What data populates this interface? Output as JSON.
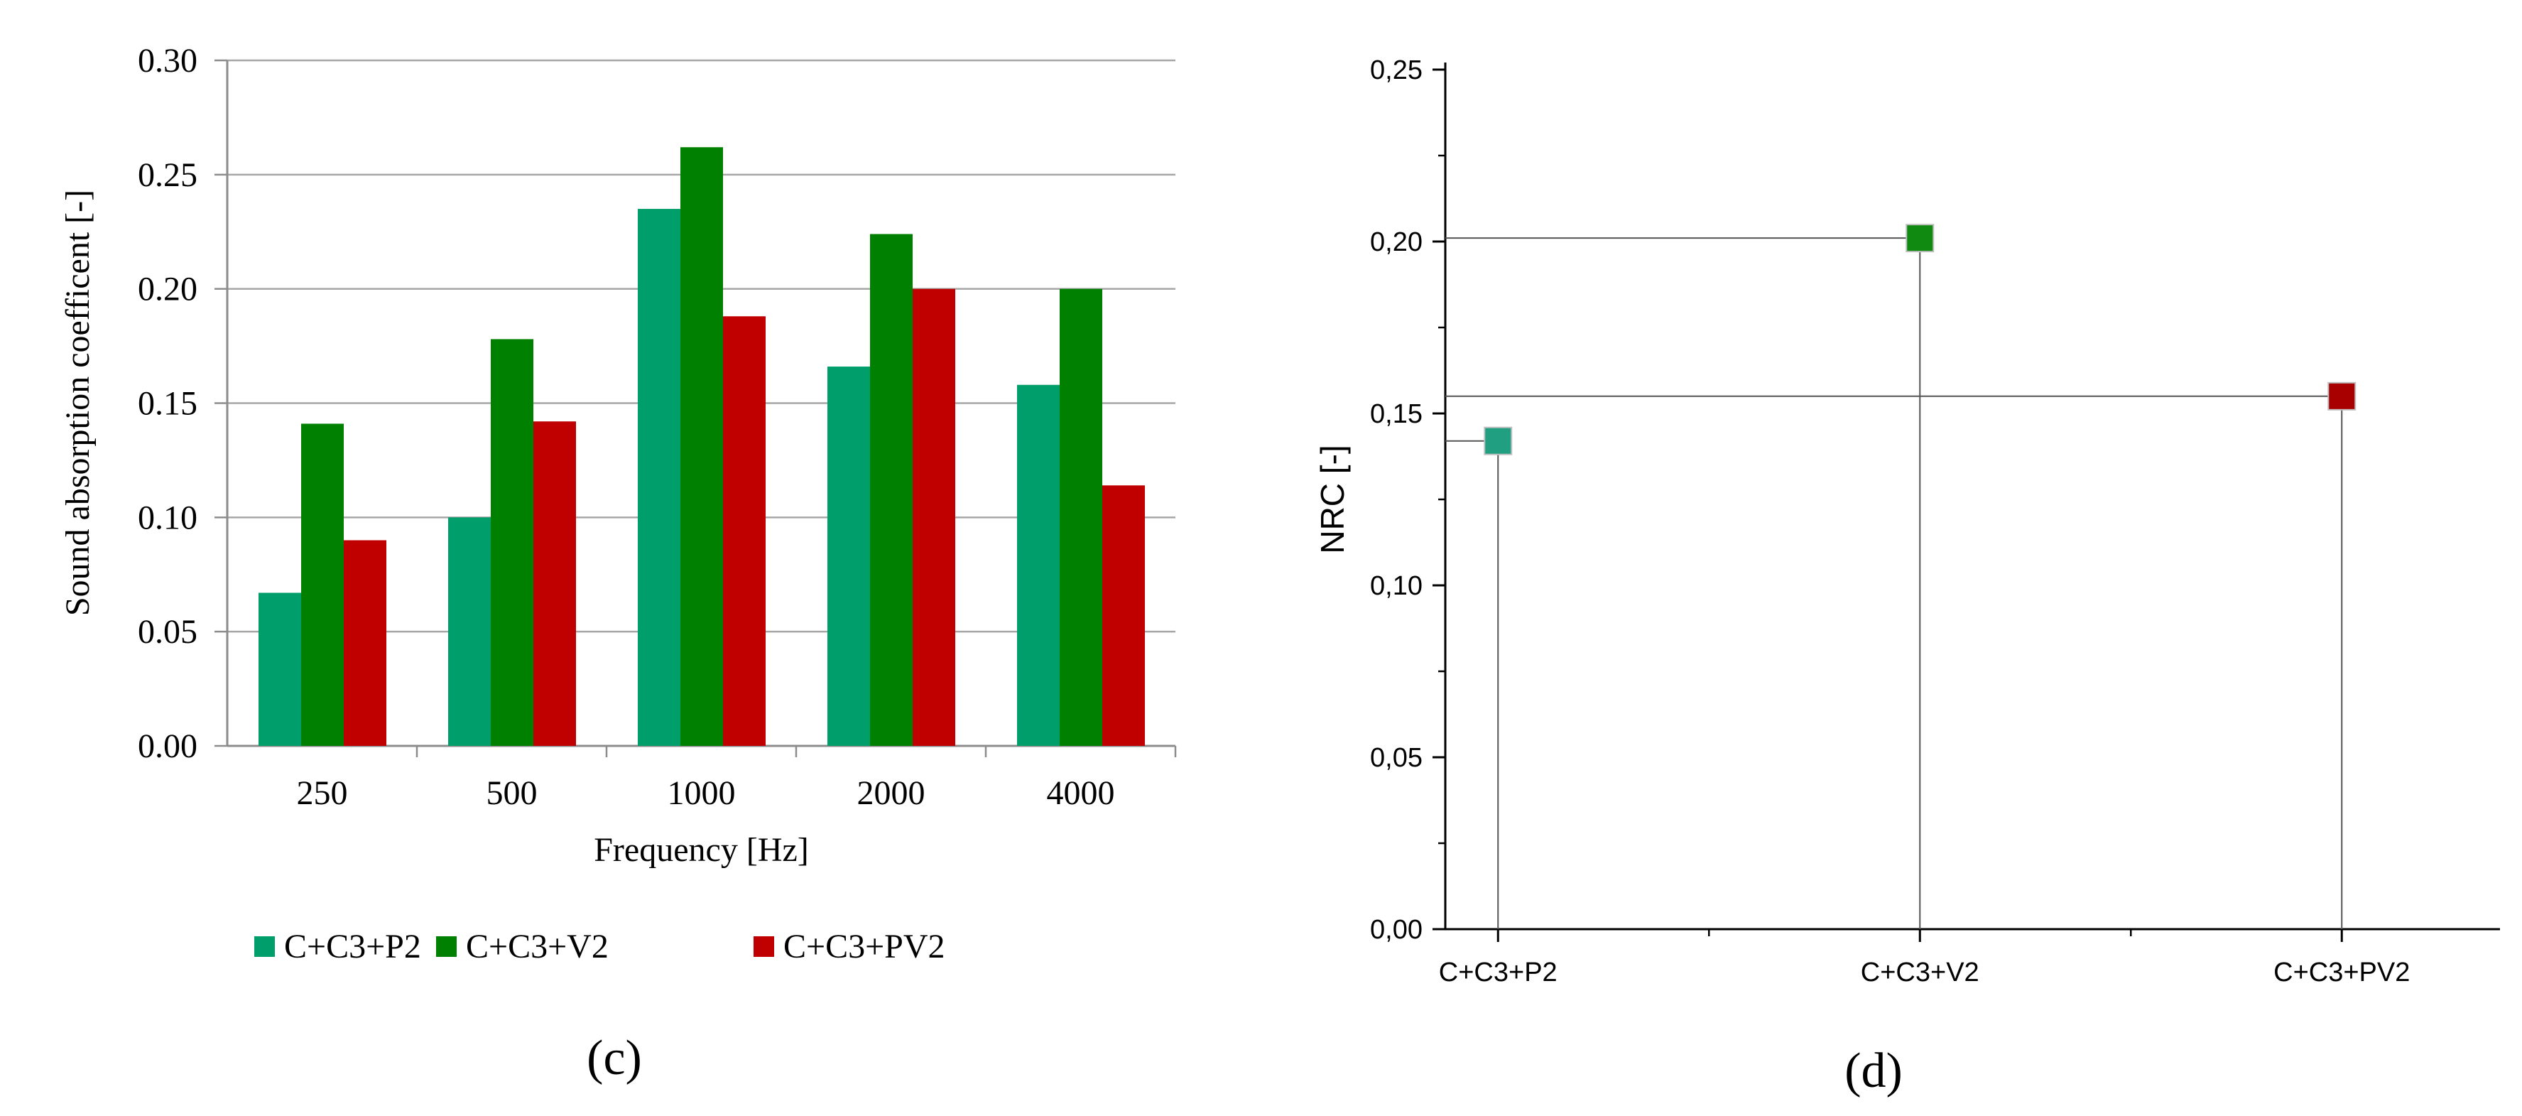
{
  "chart_data": [
    {
      "type": "bar",
      "title": "",
      "panel_label": "(c)",
      "xlabel": "Frequency [Hz]",
      "ylabel": "Sound absorption coefficent [-]",
      "categories": [
        "250",
        "500",
        "1000",
        "2000",
        "4000"
      ],
      "ylim": [
        0,
        0.3
      ],
      "yticks": [
        "0.00",
        "0.05",
        "0.10",
        "0.15",
        "0.20",
        "0.25",
        "0.30"
      ],
      "grid": true,
      "legend_position": "bottom",
      "series": [
        {
          "name": "C+C3+P2",
          "color": "#009e6b",
          "values": [
            0.067,
            0.1,
            0.235,
            0.166,
            0.158
          ]
        },
        {
          "name": "C+C3+V2",
          "color": "#008000",
          "values": [
            0.141,
            0.178,
            0.262,
            0.224,
            0.2
          ]
        },
        {
          "name": "C+C3+PV2",
          "color": "#c00000",
          "values": [
            0.09,
            0.142,
            0.188,
            0.2,
            0.114
          ]
        }
      ]
    },
    {
      "type": "scatter",
      "title": "",
      "panel_label": "(d)",
      "xlabel": "",
      "ylabel": "NRC [-]",
      "categories": [
        "C+C3+P2",
        "C+C3+V2",
        "C+C3+PV2"
      ],
      "ylim": [
        0,
        0.25
      ],
      "yticks": [
        "0,00",
        "0,05",
        "0,10",
        "0,15",
        "0,20",
        "0,25"
      ],
      "grid": false,
      "drop_lines": true,
      "points": [
        {
          "x": "C+C3+P2",
          "y": 0.142,
          "color": "#20a080"
        },
        {
          "x": "C+C3+V2",
          "y": 0.201,
          "color": "#118a11"
        },
        {
          "x": "C+C3+PV2",
          "y": 0.155,
          "color": "#a80000"
        }
      ]
    }
  ]
}
